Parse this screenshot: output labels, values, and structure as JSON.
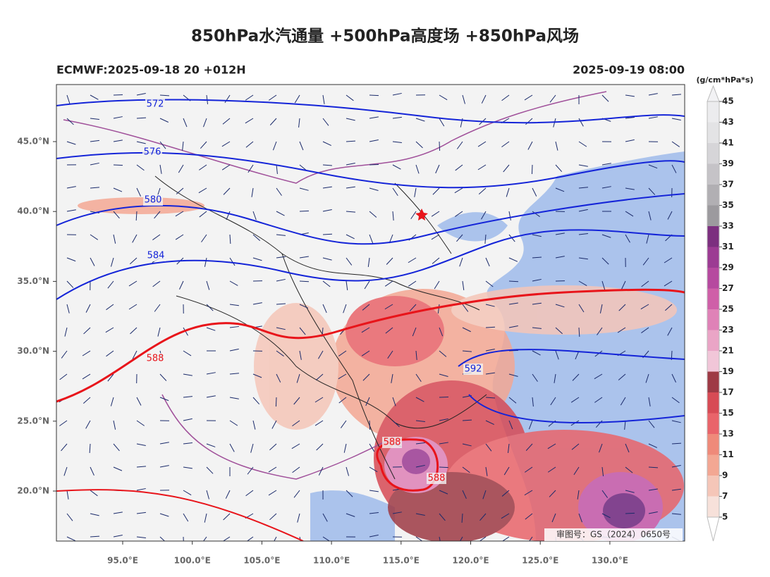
{
  "header": {
    "title": "850hPa水汽通量 +500hPa高度场 +850hPa风场",
    "left": "ECMWF:2025-09-18 20 +012H",
    "right": "2025-09-19 08:00"
  },
  "map": {
    "lon_ticks": [
      {
        "value": 95,
        "label": "95.0°E"
      },
      {
        "value": 100,
        "label": "100.0°E"
      },
      {
        "value": 105,
        "label": "105.0°E"
      },
      {
        "value": 110,
        "label": "110.0°E"
      },
      {
        "value": 115,
        "label": "115.0°E"
      },
      {
        "value": 120,
        "label": "120.0°E"
      },
      {
        "value": 125,
        "label": "125.0°E"
      },
      {
        "value": 130,
        "label": "130.0°E"
      }
    ],
    "lat_ticks": [
      {
        "value": 20,
        "label": "20.0°N"
      },
      {
        "value": 25,
        "label": "25.0°N"
      },
      {
        "value": 30,
        "label": "30.0°N"
      },
      {
        "value": 35,
        "label": "35.0°N"
      },
      {
        "value": 40,
        "label": "40.0°N"
      },
      {
        "value": 45,
        "label": "45.0°N"
      }
    ],
    "contours": [
      572,
      576,
      580,
      584,
      588,
      592,
      588,
      588
    ],
    "contour_colors": [
      "#1424d8",
      "#1424d8",
      "#1424d8",
      "#1424d8",
      "#e8141a",
      "#1424d8",
      "#e8141a",
      "#e8141a"
    ],
    "watermark": "审图号：GS（2024）0650号"
  },
  "colorbar": {
    "unit": "(g/cm*hPa*s)",
    "ticks": [
      5,
      7,
      9,
      11,
      13,
      15,
      17,
      19,
      21,
      23,
      25,
      27,
      29,
      31,
      33,
      35,
      37,
      39,
      41,
      43,
      45
    ],
    "colors": [
      "#f7e1da",
      "#f5c6b8",
      "#f3a793",
      "#ef8a7a",
      "#e9646a",
      "#d74b55",
      "#9e3a45",
      "#f1c6d8",
      "#eaa5c6",
      "#df82b7",
      "#cf5fa8",
      "#b6499f",
      "#9c3b93",
      "#7c2f7f",
      "#9c9a9e",
      "#b1afb3",
      "#c5c3c7",
      "#d6d5d8",
      "#e3e3e5",
      "#ececee"
    ]
  }
}
